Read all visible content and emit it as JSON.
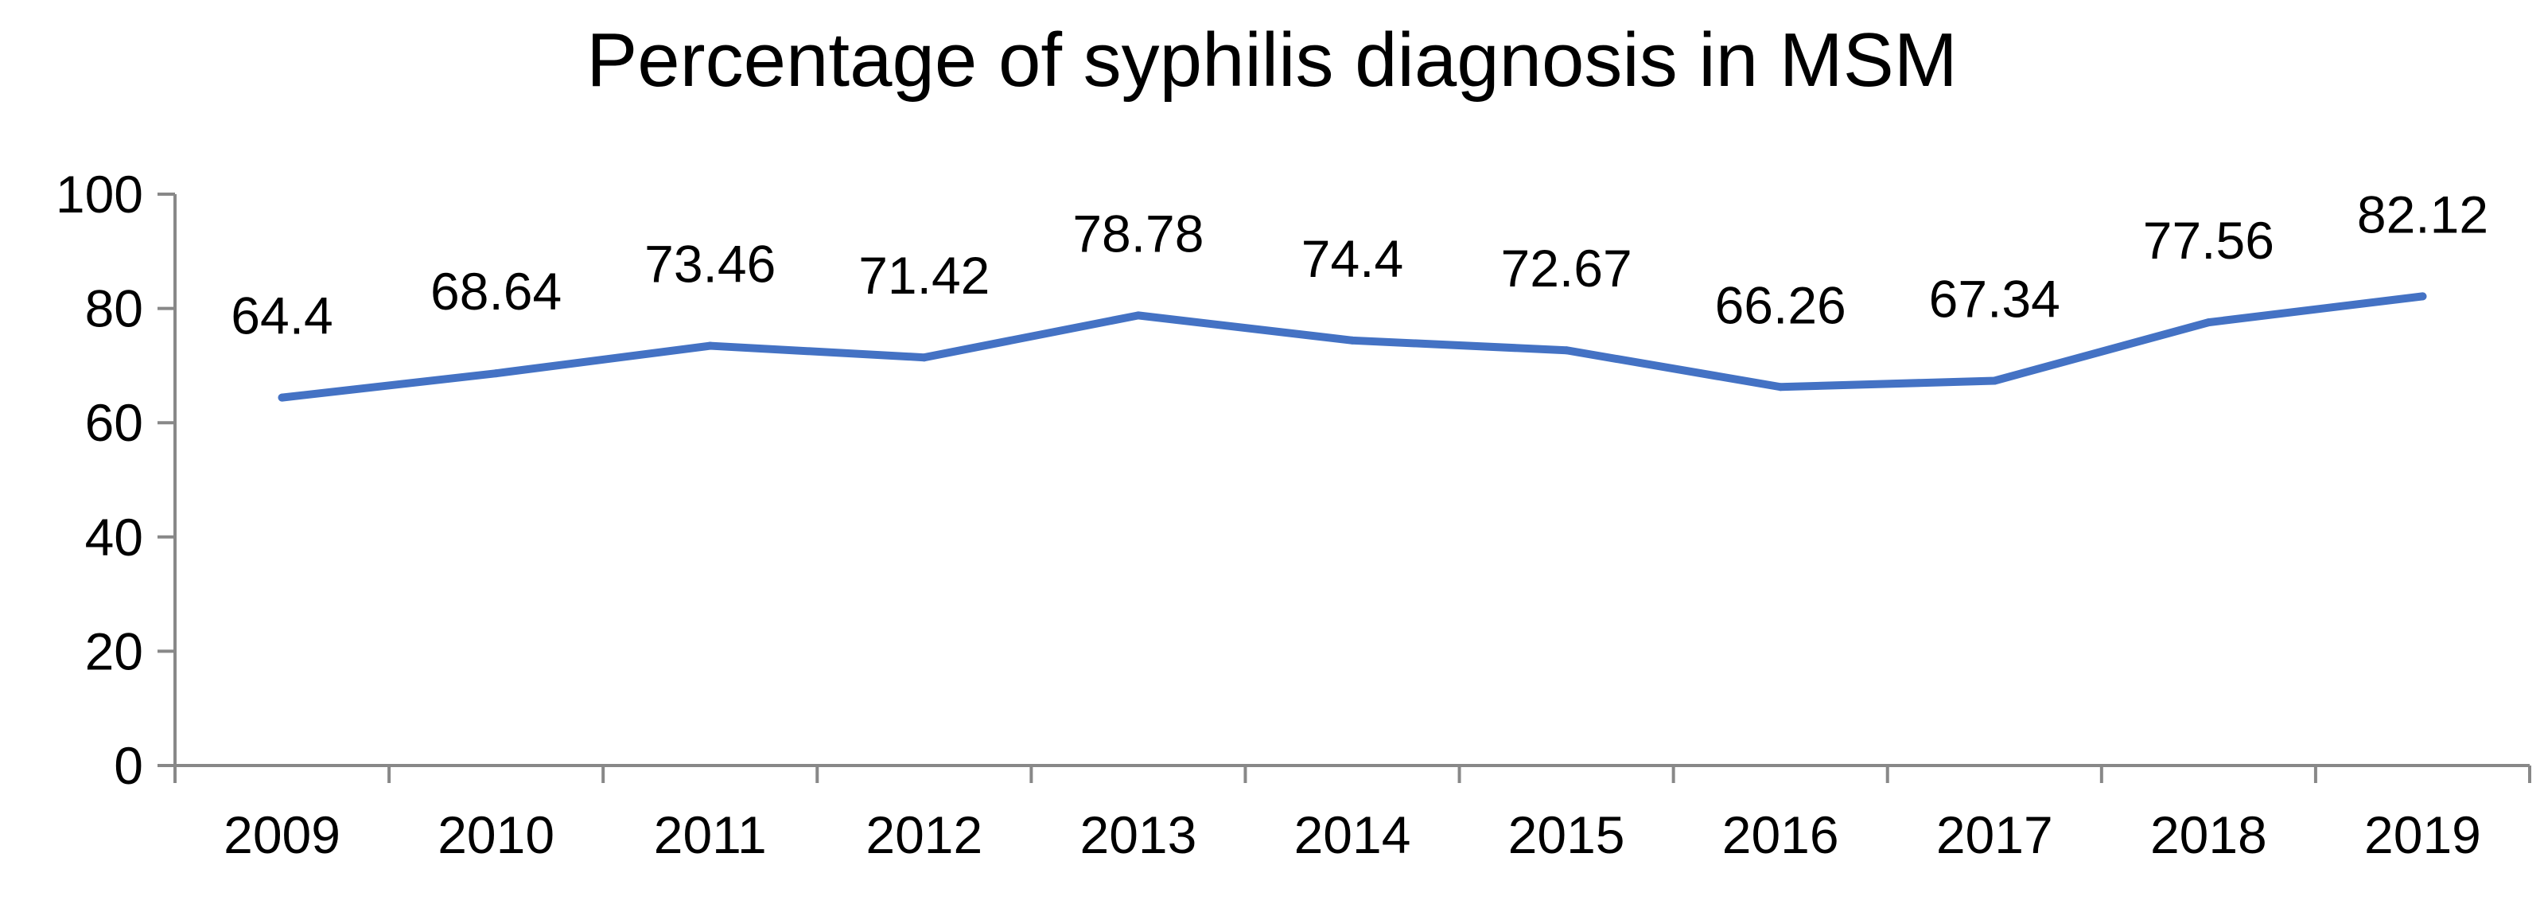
{
  "chart_data": {
    "type": "line",
    "title": "Percentage of syphilis diagnosis in MSM",
    "xlabel": "",
    "ylabel": "",
    "categories": [
      "2009",
      "2010",
      "2011",
      "2012",
      "2013",
      "2014",
      "2015",
      "2016",
      "2017",
      "2018",
      "2019"
    ],
    "series": [
      {
        "name": "Percentage of syphilis diagnosis in MSM",
        "values": [
          64.4,
          68.64,
          73.46,
          71.42,
          78.78,
          74.4,
          72.67,
          66.26,
          67.34,
          77.56,
          82.12
        ],
        "labels": [
          "64.4",
          "68.64",
          "73.46",
          "71.42",
          "78.78",
          "74.4",
          "72.67",
          "66.26",
          "67.34",
          "77.56",
          "82.12"
        ]
      }
    ],
    "ylim": [
      0,
      100
    ],
    "yticks": [
      0,
      20,
      40,
      60,
      80,
      100
    ],
    "ytick_labels": [
      "0",
      "20",
      "40",
      "60",
      "80",
      "100"
    ],
    "grid": false,
    "legend": "none",
    "colors": {
      "line": "#4472C4",
      "axis": "#888888",
      "text": "#000000"
    }
  }
}
